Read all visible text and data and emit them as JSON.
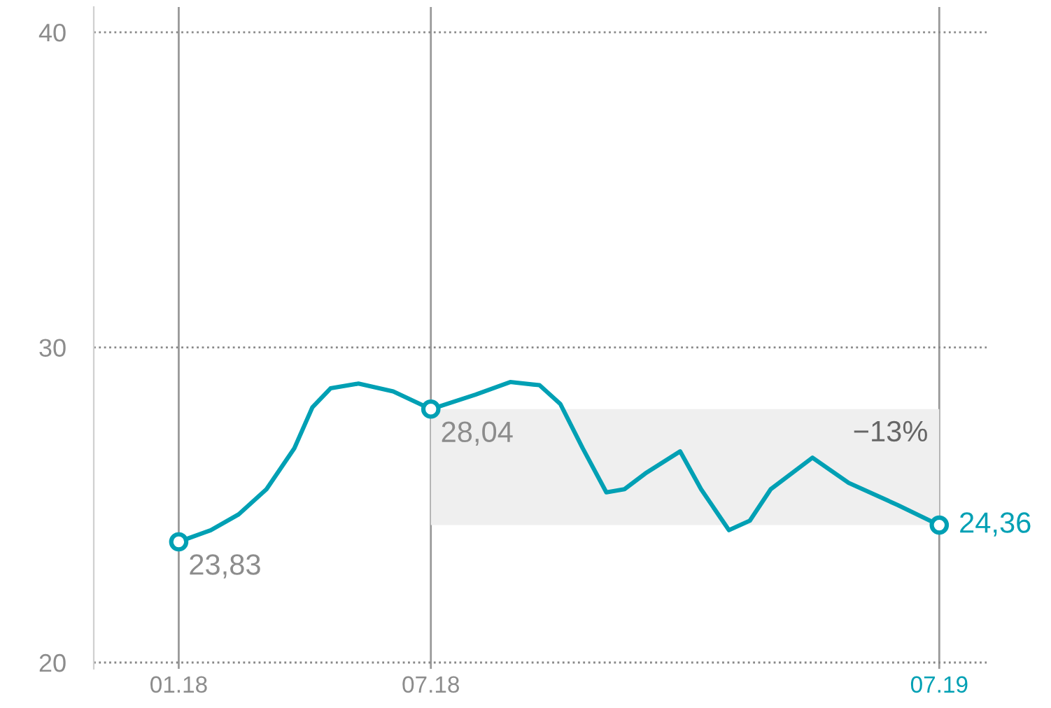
{
  "chart_data": {
    "type": "line",
    "grid": true,
    "legend": false,
    "xlim": [
      "2017-11-01",
      "2019-08-04"
    ],
    "ylim": [
      19.8,
      40.8
    ],
    "xticks": [
      {
        "value": "2018-01-01",
        "label": "01.18"
      },
      {
        "value": "2018-07-01",
        "label": "07.18"
      },
      {
        "value": "2019-07-01",
        "label": "07.19"
      }
    ],
    "yticks": [
      20,
      30,
      40
    ],
    "bands": [
      {
        "axis": "x",
        "from": "2018-07-01",
        "to": "2019-07-01",
        "label": "−13%",
        "color": "#efefef"
      }
    ],
    "series": [
      {
        "color": "#00a0b4",
        "marker": "none",
        "x": [
          "2018-01-01",
          "2018-01-24",
          "2018-02-13",
          "2018-03-05",
          "2018-03-25",
          "2018-04-07",
          "2018-04-20",
          "2018-05-10",
          "2018-06-04",
          "2018-07-01",
          "2018-08-02",
          "2018-08-27",
          "2018-09-17",
          "2018-10-02",
          "2018-10-18",
          "2018-11-04",
          "2018-11-17",
          "2018-12-02",
          "2018-12-27",
          "2019-01-11",
          "2019-01-31",
          "2019-02-15",
          "2019-03-02",
          "2019-04-01",
          "2019-04-27",
          "2019-06-01",
          "2019-07-01"
        ],
        "values": [
          23.83,
          24.2,
          24.7,
          25.5,
          26.8,
          28.1,
          28.7,
          28.85,
          28.6,
          28.04,
          28.5,
          28.9,
          28.8,
          28.2,
          26.8,
          25.4,
          25.5,
          26.0,
          26.7,
          25.5,
          24.2,
          24.5,
          25.5,
          26.5,
          25.7,
          25.0,
          24.36
        ]
      },
      {
        "type": "scatter",
        "color": "#00a0b4",
        "marker": "circle",
        "x": [
          "2018-01-01",
          "2018-07-01",
          "2019-07-01"
        ],
        "values": [
          23.83,
          28.04,
          24.36
        ],
        "value_labels": [
          "23,83",
          "28,04",
          "24,36"
        ]
      }
    ]
  }
}
